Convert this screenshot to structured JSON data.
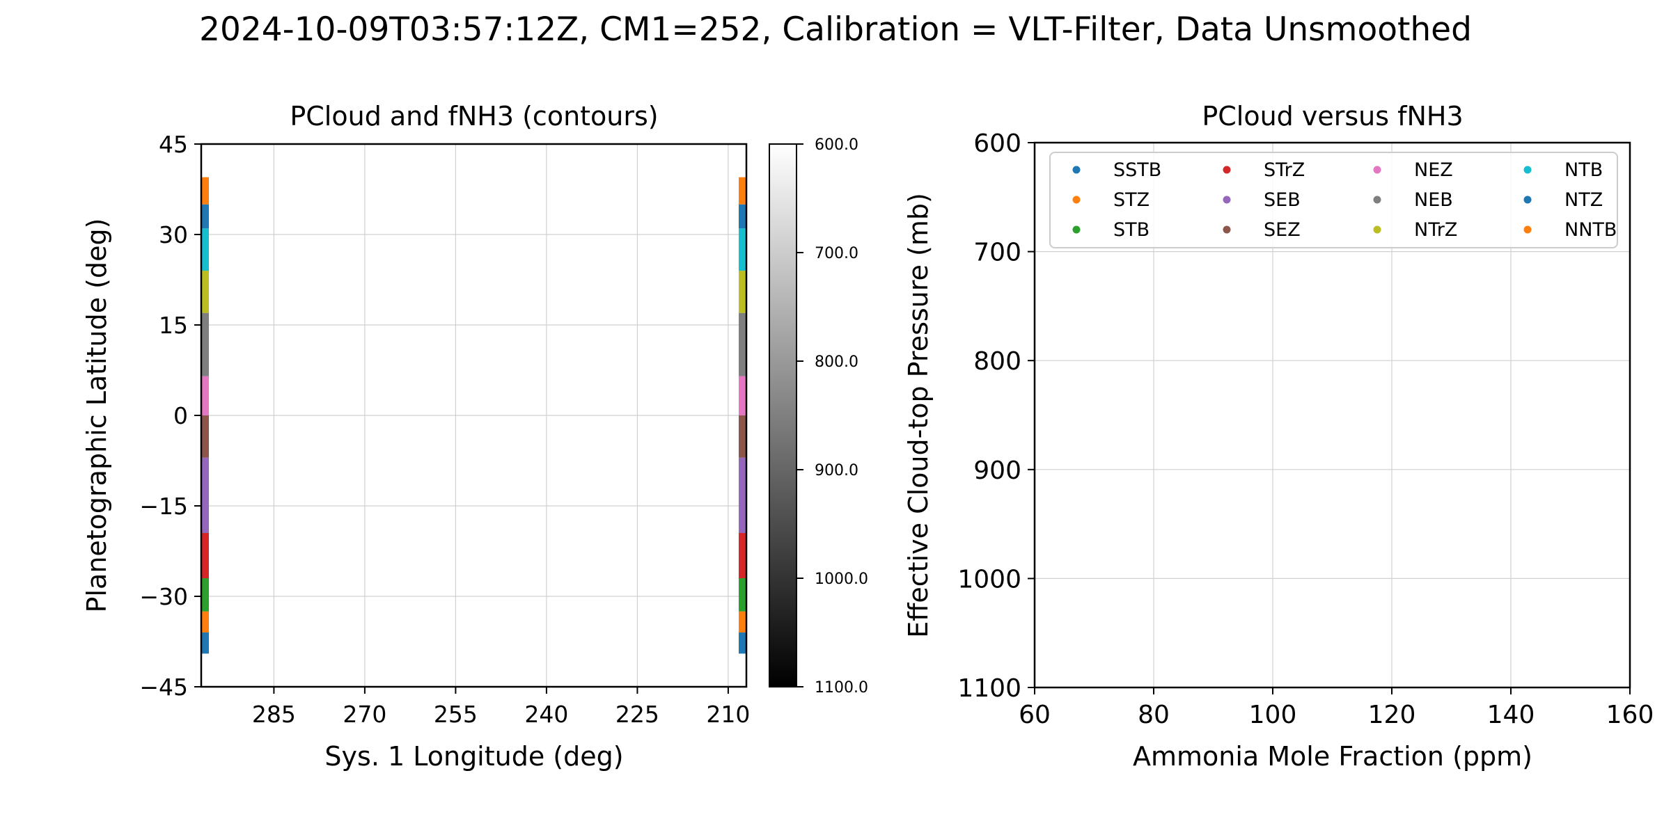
{
  "figure": {
    "suptitle": "2024-10-09T03:57:12Z, CM1=252, Calibration = VLT-Filter, Data Unsmoothed"
  },
  "colors": {
    "SSTB": "#1f77b4",
    "STZ": "#ff7f0e",
    "STB": "#2ca02c",
    "STrZ": "#d62728",
    "SEB": "#9467bd",
    "SEZ": "#8c564b",
    "NEZ": "#e377c2",
    "NEB": "#7f7f7f",
    "NTrZ": "#bcbd22",
    "NTB": "#17becf",
    "NTZ": "#1f77b4",
    "NNTB": "#ff7f0e"
  },
  "chart_data": [
    {
      "type": "heatmap",
      "title": "PCloud and fNH3 (contours)",
      "xlabel": "Sys. 1 Longitude (deg)",
      "ylabel": "Planetographic Latitude (deg)",
      "xlim": [
        297,
        207
      ],
      "ylim": [
        -45,
        45
      ],
      "xticks": [
        "285",
        "270",
        "255",
        "240",
        "225",
        "210"
      ],
      "xtick_values": [
        285,
        270,
        255,
        240,
        225,
        210
      ],
      "yticks": [
        "45",
        "30",
        "15",
        "0",
        "−15",
        "−30",
        "−45"
      ],
      "ytick_values": [
        45,
        30,
        15,
        0,
        -15,
        -30,
        -45
      ],
      "grid": true,
      "colorbar": {
        "cmap": "gray_r",
        "range": [
          600,
          1100
        ],
        "ticks": [
          "600.0",
          "700.0",
          "800.0",
          "900.0",
          "1000.0",
          "1100.0"
        ],
        "tick_values": [
          600,
          700,
          800,
          900,
          1000,
          1100
        ]
      },
      "belt_bands": [
        {
          "name": "SSTB",
          "lat": [
            -39.5,
            -36
          ]
        },
        {
          "name": "STZ",
          "lat": [
            -36,
            -32.5
          ]
        },
        {
          "name": "STB",
          "lat": [
            -32.5,
            -27
          ]
        },
        {
          "name": "STrZ",
          "lat": [
            -27,
            -19.5
          ]
        },
        {
          "name": "SEB",
          "lat": [
            -19.5,
            -7
          ]
        },
        {
          "name": "SEZ",
          "lat": [
            -7,
            0
          ]
        },
        {
          "name": "NEZ",
          "lat": [
            0,
            6.5
          ]
        },
        {
          "name": "NEB",
          "lat": [
            6.5,
            17
          ]
        },
        {
          "name": "NTrZ",
          "lat": [
            17,
            24
          ]
        },
        {
          "name": "NTB",
          "lat": [
            24,
            31
          ]
        },
        {
          "name": "NTZ",
          "lat": [
            31,
            35
          ]
        },
        {
          "name": "NNTB",
          "lat": [
            35,
            39.5
          ]
        }
      ]
    },
    {
      "type": "scatter",
      "title": "PCloud versus fNH3",
      "xlabel": "Ammonia Mole Fraction (ppm)",
      "ylabel": "Effective Cloud-top Pressure (mb)",
      "xlim": [
        60,
        160
      ],
      "ylim": [
        1100,
        600
      ],
      "xticks": [
        "60",
        "80",
        "100",
        "120",
        "140",
        "160"
      ],
      "xtick_values": [
        60,
        80,
        100,
        120,
        140,
        160
      ],
      "yticks": [
        "600",
        "700",
        "800",
        "900",
        "1000",
        "1100"
      ],
      "ytick_values": [
        600,
        700,
        800,
        900,
        1000,
        1100
      ],
      "grid": true,
      "legend_position": "upper",
      "legend": [
        "SSTB",
        "STZ",
        "STB",
        "STrZ",
        "SEB",
        "SEZ",
        "NEZ",
        "NEB",
        "NTrZ",
        "NTB",
        "NTZ",
        "NNTB"
      ],
      "series": []
    }
  ]
}
